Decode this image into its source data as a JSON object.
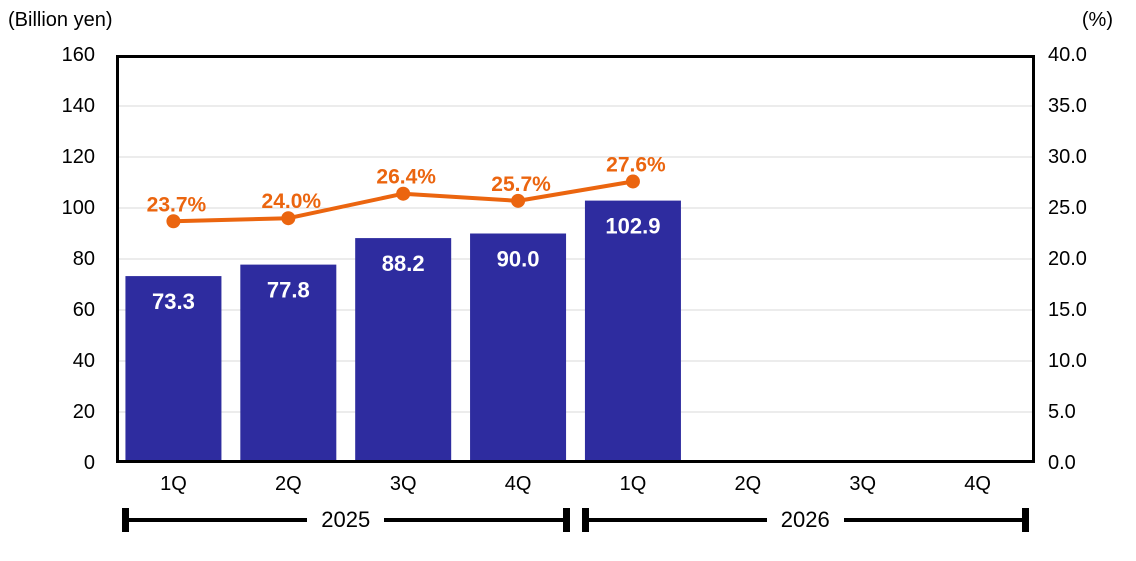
{
  "colors": {
    "bar": "#2E2C9F",
    "bar_label": "#FFFFFF",
    "line": "#EB650F",
    "grid": "#D9D9D9",
    "axis_border": "#000000",
    "text": "#000000"
  },
  "chart_data": {
    "type": "combo-bar-line",
    "categories": [
      "1Q",
      "2Q",
      "3Q",
      "4Q",
      "1Q",
      "2Q",
      "3Q",
      "4Q"
    ],
    "year_groups": [
      {
        "label": "2025",
        "start": 0,
        "end": 3
      },
      {
        "label": "2026",
        "start": 4,
        "end": 7
      }
    ],
    "left_axis": {
      "title": "(Billion yen)",
      "min": 0,
      "max": 160,
      "step": 20,
      "ticks": [
        "160",
        "140",
        "120",
        "100",
        "80",
        "60",
        "40",
        "20",
        "0"
      ]
    },
    "right_axis": {
      "title": "(%)",
      "min": 0,
      "max": 40,
      "step": 5,
      "ticks": [
        "40.0",
        "35.0",
        "30.0",
        "25.0",
        "20.0",
        "15.0",
        "10.0",
        "5.0",
        "0.0"
      ]
    },
    "grid": true,
    "legend": "none",
    "series": [
      {
        "name": "bar-series",
        "type": "bar",
        "axis": "left",
        "values": [
          73.3,
          77.8,
          88.2,
          90.0,
          102.9,
          null,
          null,
          null
        ],
        "labels": [
          "73.3",
          "77.8",
          "88.2",
          "90.0",
          "102.9",
          null,
          null,
          null
        ]
      },
      {
        "name": "line-series",
        "type": "line",
        "axis": "right",
        "values": [
          23.7,
          24.0,
          26.4,
          25.7,
          27.6,
          null,
          null,
          null
        ],
        "labels": [
          "23.7%",
          "24.0%",
          "26.4%",
          "25.7%",
          "27.6%",
          null,
          null,
          null
        ]
      }
    ]
  }
}
